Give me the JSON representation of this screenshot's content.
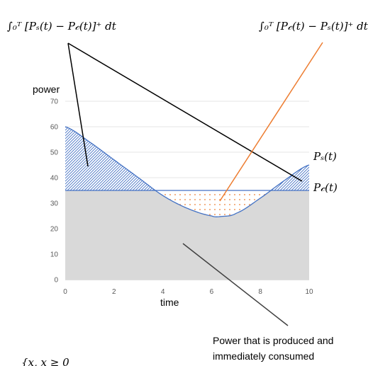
{
  "chart_data": {
    "type": "area",
    "xlabel": "time",
    "ylabel": "power",
    "xlim": [
      0,
      10
    ],
    "ylim": [
      0,
      70
    ],
    "x_ticks": [
      0,
      2,
      4,
      6,
      8,
      10
    ],
    "y_ticks": [
      0,
      10,
      20,
      30,
      40,
      50,
      60,
      70
    ],
    "grid": "horizontal",
    "series": [
      {
        "name": "P_s(t)",
        "x": [
          0,
          1,
          2,
          3,
          4,
          5,
          6,
          6.4,
          7,
          8,
          9,
          10
        ],
        "y": [
          60,
          54,
          47,
          40,
          33,
          28,
          25,
          24.8,
          26,
          32,
          39,
          45
        ],
        "color": "#4472c4"
      },
      {
        "name": "P_c(t)",
        "x": [
          0,
          10
        ],
        "y": [
          35,
          35
        ],
        "color": "#4472c4"
      }
    ],
    "annotations": {
      "surplus_integral": "∫₀ᵀ [Pₛ(t) − P𝒸(t)]⁺ dt",
      "deficit_integral": "∫₀ᵀ [P𝒸(t) − Pₛ(t)]⁺ dt",
      "ps_label": "Pₛ(t)",
      "pc_label": "P𝒸(t)",
      "consumed_note_line1": "Power that is produced and",
      "consumed_note_line2": "immediately consumed",
      "bottom_fragment": "{x, x ≥ 0"
    },
    "colors": {
      "line": "#4472c4",
      "consumed_fill": "#d9d9d9",
      "surplus_hatch": "#4472c4",
      "deficit_dots": "#ed7d31",
      "pointer_orange": "#ed7d31",
      "pointer_black": "#000000",
      "pointer_gray": "#404040"
    }
  }
}
